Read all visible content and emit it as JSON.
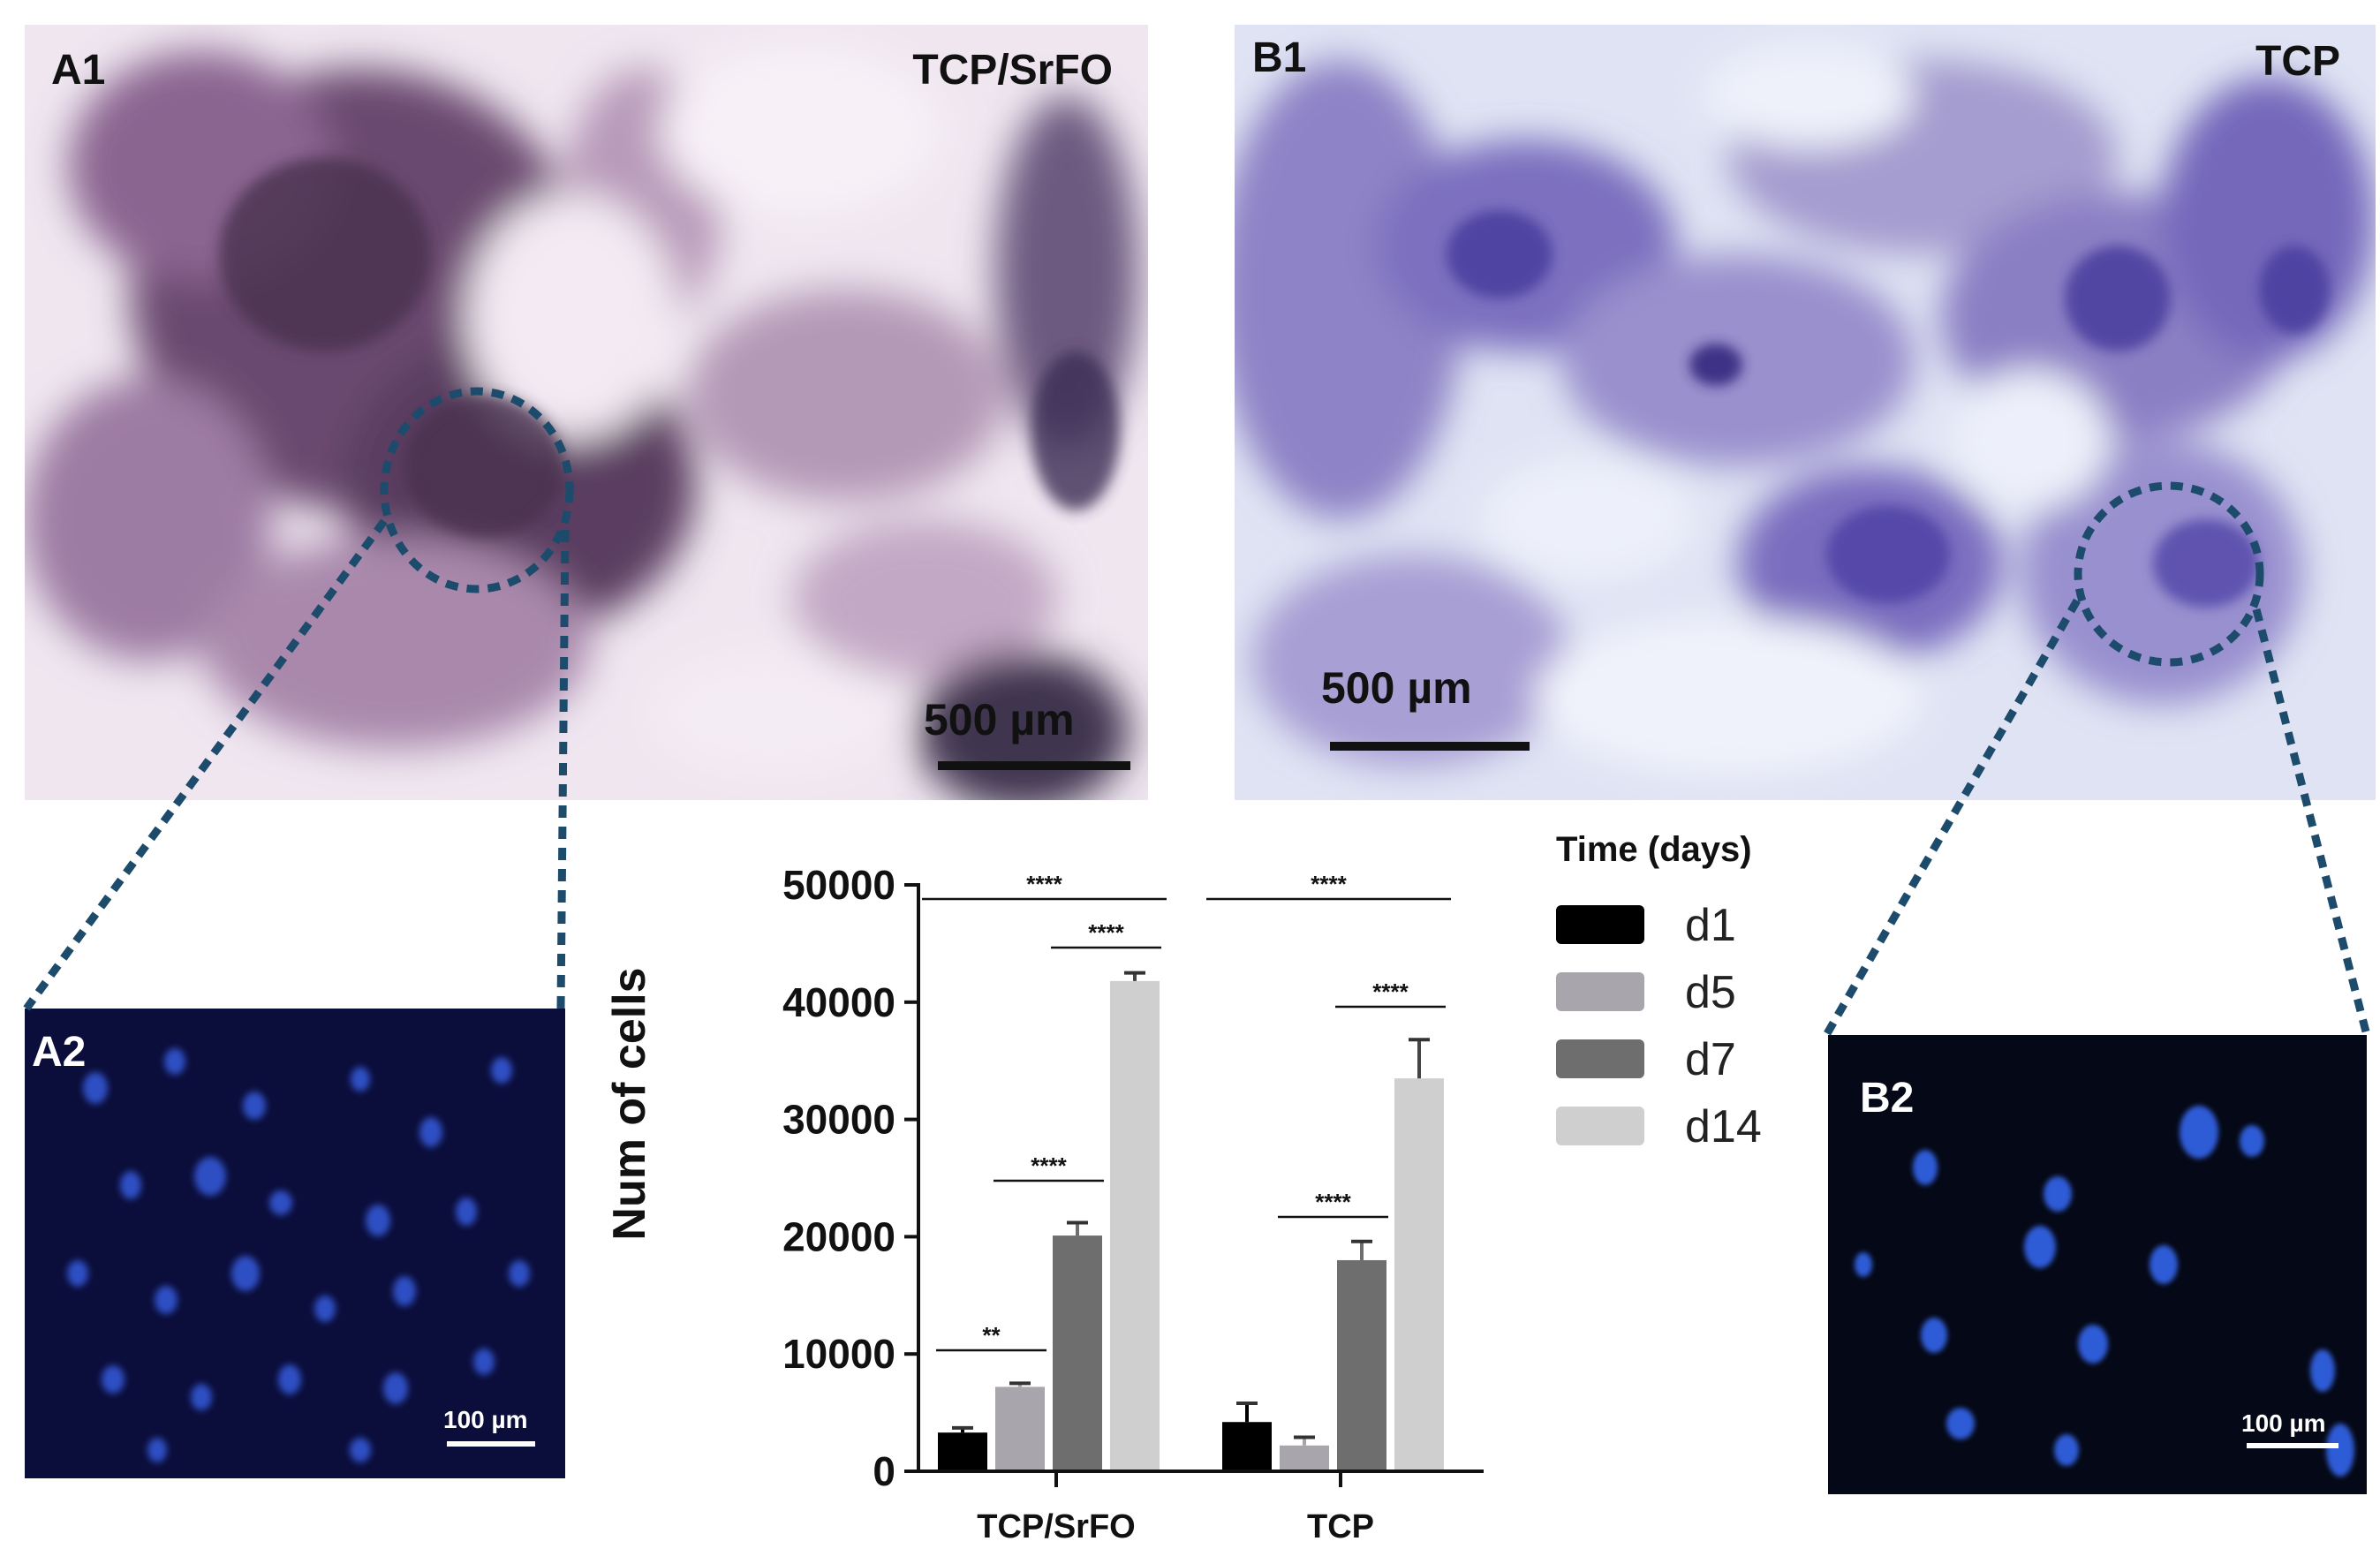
{
  "panels": {
    "a1": {
      "label": "A1",
      "title": "TCP/SrFO",
      "scale": "500 µm"
    },
    "b1": {
      "label": "B1",
      "title": "TCP",
      "scale": "500 µm"
    },
    "a2": {
      "label": "A2",
      "scale": "100 µm"
    },
    "b2": {
      "label": "B2",
      "scale": "100 µm"
    }
  },
  "chart_data": {
    "type": "bar",
    "categories": [
      "TCP/SrFO",
      "TCP"
    ],
    "ylabel": "Num of cells",
    "xlabel": "",
    "ylim": [
      0,
      50000
    ],
    "yticks": [
      "0",
      "10000",
      "20000",
      "30000",
      "40000",
      "50000"
    ],
    "legend": {
      "title": "Time (days)",
      "placement": "right"
    },
    "series": [
      {
        "name": "d1",
        "color": "#000000",
        "values": [
          3300,
          4200
        ],
        "errors": [
          400,
          1600
        ]
      },
      {
        "name": "d5",
        "color": "#a9a5ad",
        "values": [
          7200,
          2200
        ],
        "errors": [
          300,
          700
        ]
      },
      {
        "name": "d7",
        "color": "#6e6e6e",
        "values": [
          20100,
          18000
        ],
        "errors": [
          1100,
          1600
        ]
      },
      {
        "name": "d14",
        "color": "#cfcfcf",
        "values": [
          41800,
          33500
        ],
        "errors": [
          700,
          3300
        ]
      }
    ],
    "significance": [
      {
        "group": 0,
        "from": 0,
        "to": 3,
        "label": "****"
      },
      {
        "group": 0,
        "from": 2,
        "to": 3,
        "label": "****"
      },
      {
        "group": 0,
        "from": 1,
        "to": 2,
        "label": "****"
      },
      {
        "group": 0,
        "from": 0,
        "to": 1,
        "label": "**"
      },
      {
        "group": 1,
        "from": 0,
        "to": 3,
        "label": "****"
      },
      {
        "group": 1,
        "from": 2,
        "to": 3,
        "label": "****"
      },
      {
        "group": 1,
        "from": 1,
        "to": 2,
        "label": "****"
      }
    ]
  }
}
